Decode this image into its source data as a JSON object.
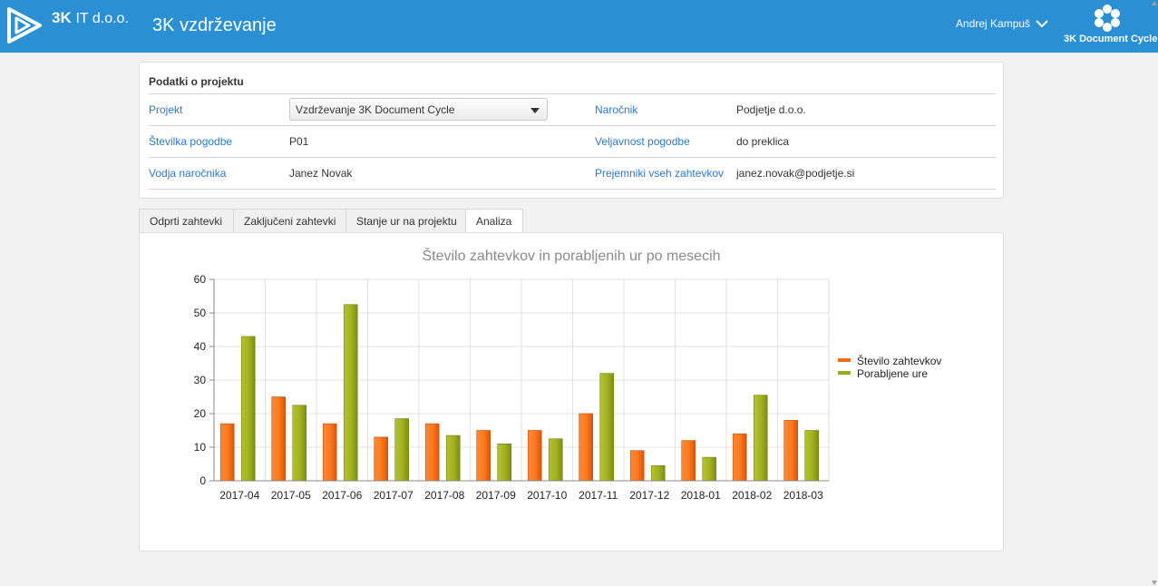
{
  "header": {
    "brand_bold": "3K",
    "brand_rest": "IT d.o.o.",
    "app_title": "3K vzdrževanje",
    "user_name": "Andrej Kampuš",
    "product_name": "3K Document Cycle",
    "color": "#2b8fd3"
  },
  "project": {
    "title": "Podatki o projektu",
    "fields": {
      "project_label": "Projekt",
      "project_value": "Vzdrževanje 3K Document Cycle",
      "client_label": "Naročnik",
      "client_value": "Podjetje d.o.o.",
      "contract_no_label": "Številka pogodbe",
      "contract_no_value": "P01",
      "validity_label": "Veljavnost pogodbe",
      "validity_value": "do preklica",
      "client_lead_label": "Vodja naročnika",
      "client_lead_value": "Janez Novak",
      "recipients_label": "Prejemniki vseh zahtevkov",
      "recipients_value": "janez.novak@podjetje.si"
    }
  },
  "tabs": [
    {
      "label": "Odprti zahtevki"
    },
    {
      "label": "Zaključeni zahtevki"
    },
    {
      "label": "Stanje ur na projektu"
    },
    {
      "label": "Analiza"
    }
  ],
  "chart_data": {
    "type": "bar",
    "title": "Število zahtevkov in porabljenih ur po mesecih",
    "categories": [
      "2017-04",
      "2017-05",
      "2017-06",
      "2017-07",
      "2017-08",
      "2017-09",
      "2017-10",
      "2017-11",
      "2017-12",
      "2018-01",
      "2018-02",
      "2018-03"
    ],
    "series": [
      {
        "name": "Število zahtevkov",
        "color": "#f26b1d",
        "values": [
          17,
          25,
          17,
          13,
          17,
          15,
          15,
          20,
          9,
          12,
          14,
          18
        ]
      },
      {
        "name": "Porabljene ure",
        "color": "#9aab1e",
        "values": [
          43,
          22.5,
          52.5,
          18.5,
          13.5,
          11,
          12.5,
          32,
          4.5,
          7,
          25.5,
          15
        ]
      }
    ],
    "ylim": [
      0,
      60
    ],
    "yticks": [
      0,
      10,
      20,
      30,
      40,
      50,
      60
    ],
    "grid": true,
    "legend": "right"
  }
}
